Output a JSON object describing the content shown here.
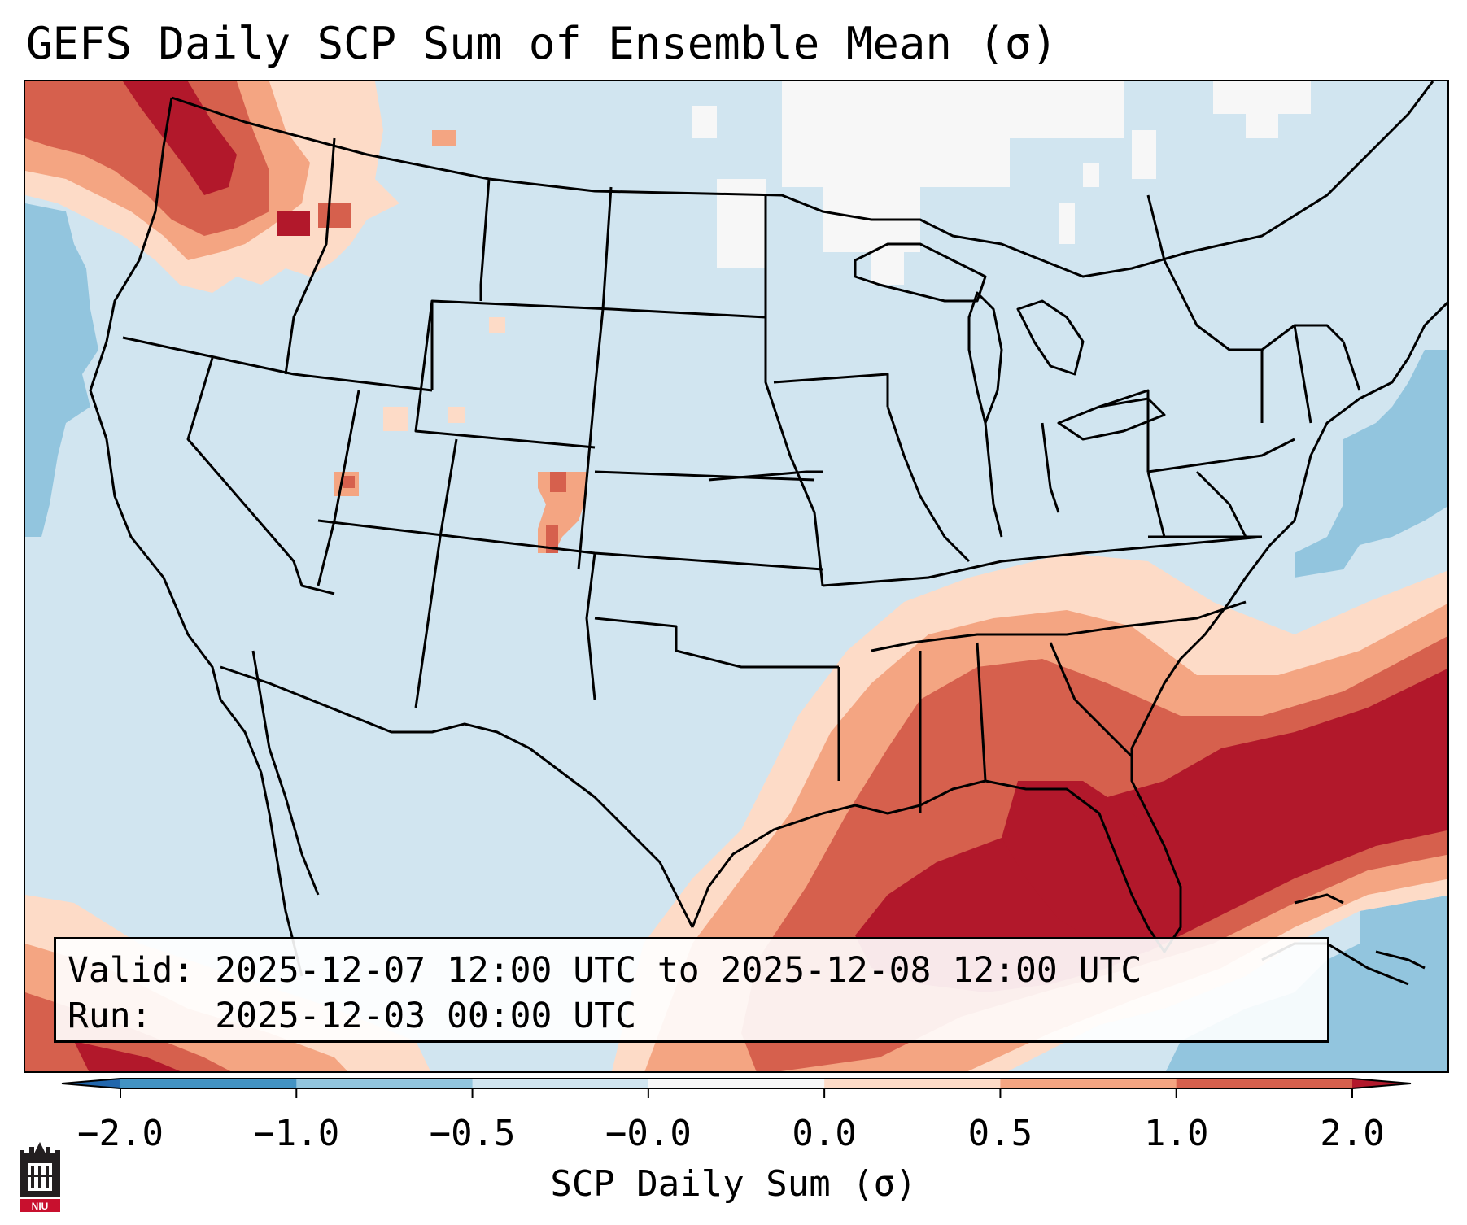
{
  "title": "GEFS Daily SCP Sum of Ensemble Mean (σ)",
  "info": {
    "valid_label": "Valid:",
    "valid_value": "2025-12-07 12:00 UTC to 2025-12-08 12:00 UTC",
    "run_label": "Run:",
    "run_value": "2025-12-03 00:00 UTC"
  },
  "colorbar": {
    "label": "SCP Daily Sum (σ)",
    "ticks": [
      "−2.0",
      "−1.0",
      "−0.5",
      "−0.0",
      "0.0",
      "0.5",
      "1.0",
      "2.0"
    ],
    "colors": [
      "#4393c3",
      "#92c5de",
      "#d1e5f0",
      "#f7f7f7",
      "#fddbc7",
      "#f4a582",
      "#d6604d"
    ],
    "extend_min_color": "#2166ac",
    "extend_max_color": "#b2182b"
  },
  "logo": {
    "text": "NIU"
  },
  "map": {
    "region": "Continental United States",
    "features": [
      "state borders",
      "coastlines",
      "country borders"
    ],
    "highlights": [
      {
        "area": "Southeast US and Gulf of Mexico",
        "level": "2.0"
      },
      {
        "area": "Western Atlantic",
        "level": "2.0"
      },
      {
        "area": "Pacific Northwest",
        "level": "1.0"
      },
      {
        "area": "Colorado",
        "level": "0.5"
      }
    ]
  }
}
